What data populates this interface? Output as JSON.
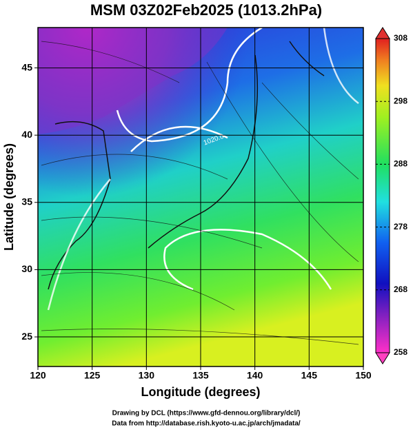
{
  "chart_data": {
    "type": "contour",
    "title": "MSM 03Z02Feb2025 (1013.2hPa)",
    "xlabel": "Longitude (degrees)",
    "ylabel": "Latitude  (degrees)",
    "xlim": [
      120,
      150
    ],
    "xticks": [
      120,
      125,
      130,
      135,
      140,
      145,
      150
    ],
    "ylim": [
      22.8,
      48
    ],
    "yticks": [
      25,
      30,
      35,
      40,
      45
    ],
    "grid": true,
    "contour_labels": [
      "1020.0"
    ],
    "colorbar": {
      "lim": [
        258,
        308
      ],
      "ticks": [
        258,
        268,
        278,
        288,
        298,
        308
      ]
    },
    "credits": [
      "Drawing by DCL (https://www.gfd-dennou.org/library/dcl/)",
      "Data from http://database.rish.kyoto-u.ac.jp/arch/jmadata/"
    ]
  }
}
